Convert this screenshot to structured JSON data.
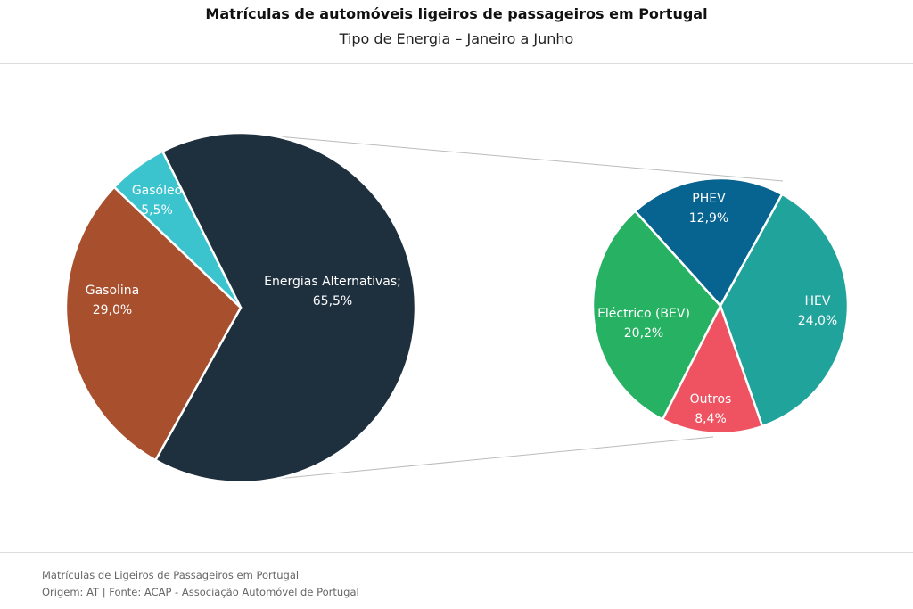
{
  "chart_data": [
    {
      "type": "pie",
      "title": "Matrículas de automóveis ligeiros de passageiros em Portugal",
      "subtitle": "Tipo de Energia – Janeiro a Junho",
      "slices": [
        {
          "label": "Energias Alternativas;",
          "value": 65.5,
          "value_label": "65,5%",
          "color": "#1e2f3e"
        },
        {
          "label": "Gasolina",
          "value": 29.0,
          "value_label": "29,0%",
          "color": "#a84f2e"
        },
        {
          "label": "Gasóleo",
          "value": 5.5,
          "value_label": "5,5%",
          "color": "#3bc3ce"
        }
      ]
    },
    {
      "type": "pie",
      "breakdown_of": "Energias Alternativas",
      "slices": [
        {
          "label": "PHEV",
          "value": 12.9,
          "value_label": "12,9%",
          "color": "#07638f"
        },
        {
          "label": "HEV",
          "value": 24.0,
          "value_label": "24,0%",
          "color": "#1fa39a"
        },
        {
          "label": "Outros",
          "value": 8.4,
          "value_label": "8,4%",
          "color": "#ef5260"
        },
        {
          "label": "Eléctrico (BEV)",
          "value": 20.2,
          "value_label": "20,2%",
          "color": "#27b163"
        }
      ]
    }
  ],
  "footer": {
    "line1": "Matrículas de Ligeiros de Passageiros em Portugal",
    "line2": "Origem: AT | Fonte: ACAP - Associação Automóvel de Portugal"
  }
}
